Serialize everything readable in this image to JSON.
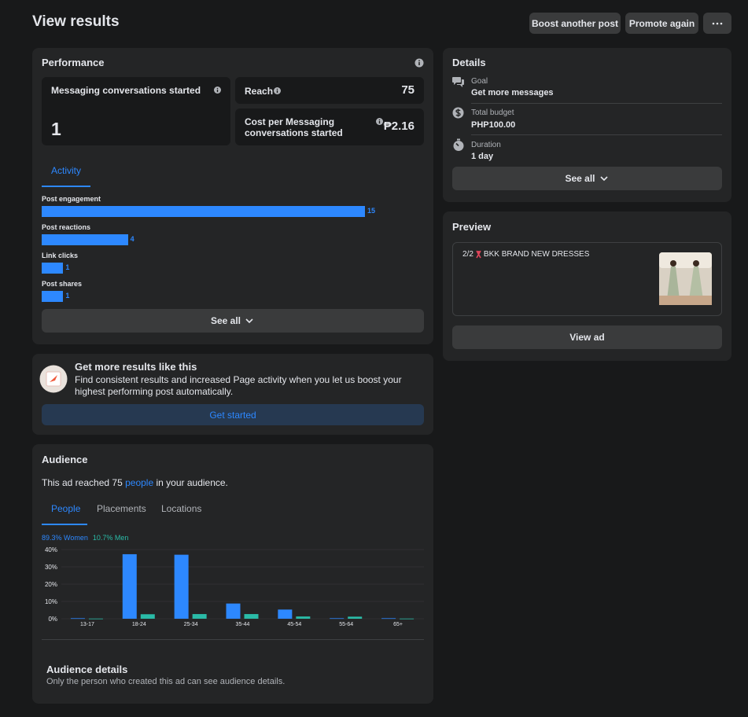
{
  "header": {
    "title": "View results",
    "buttons": [
      "Boost another post",
      "Promote again"
    ]
  },
  "performance": {
    "title": "Performance",
    "metrics": [
      {
        "label": "Messaging conversations started",
        "value": 1
      },
      {
        "label": "Reach",
        "value": 75
      },
      {
        "label": "Cost per Messaging conversations started",
        "value": "₱2.16"
      }
    ],
    "tab": "Activity",
    "button": "See all"
  },
  "promo": {
    "title": "Get more results like this",
    "description": "Find consistent results and increased Page activity when you let us boost your highest performing post automatically.",
    "button": "Get started"
  },
  "audience": {
    "title": "Audience",
    "summary": {
      "before": "This ad reached",
      "reach": 75,
      "link": "people",
      "after": "in your audience."
    },
    "tabs": [
      "People",
      "Placements",
      "Locations"
    ],
    "details_title": "Audience details",
    "details_text": "Only the person who created this ad can see audience details."
  },
  "details": {
    "title": "Details",
    "items": [
      {
        "label": "Goal",
        "value": "Get more messages"
      },
      {
        "label": "Total budget",
        "value": "PHP100.00"
      },
      {
        "label": "Duration",
        "value": "1 day"
      }
    ],
    "button": "See all"
  },
  "preview": {
    "title": "Preview",
    "post_prefix": "2/2",
    "post_text": "BKK BRAND NEW DRESSES",
    "button": "View ad"
  },
  "chart_data": [
    {
      "type": "bar",
      "orientation": "horizontal",
      "categories": [
        "Post engagement",
        "Post reactions",
        "Link clicks",
        "Post shares"
      ],
      "values": [
        15,
        4,
        1,
        1
      ],
      "color": "#2d88ff"
    },
    {
      "type": "bar",
      "orientation": "vertical",
      "categories": [
        "13-17",
        "18-24",
        "25-34",
        "35-44",
        "45-54",
        "55-64",
        "65+"
      ],
      "series": [
        {
          "name": "89.3% Women",
          "color": "#2d88ff",
          "values": [
            0.3,
            37.3,
            37.0,
            8.8,
            5.3,
            0.3,
            0.3
          ]
        },
        {
          "name": "10.7% Men",
          "color": "#2abba7",
          "values": [
            0.1,
            2.6,
            2.7,
            2.7,
            1.3,
            1.2,
            0.1
          ]
        }
      ],
      "ylim": [
        0,
        40
      ],
      "yticks": [
        {
          "value": 0,
          "label": "0%"
        },
        {
          "value": 10,
          "label": "10%"
        },
        {
          "value": 20,
          "label": "20%"
        },
        {
          "value": 30,
          "label": "30%"
        },
        {
          "value": 40,
          "label": "40%"
        }
      ],
      "grid": true
    }
  ]
}
